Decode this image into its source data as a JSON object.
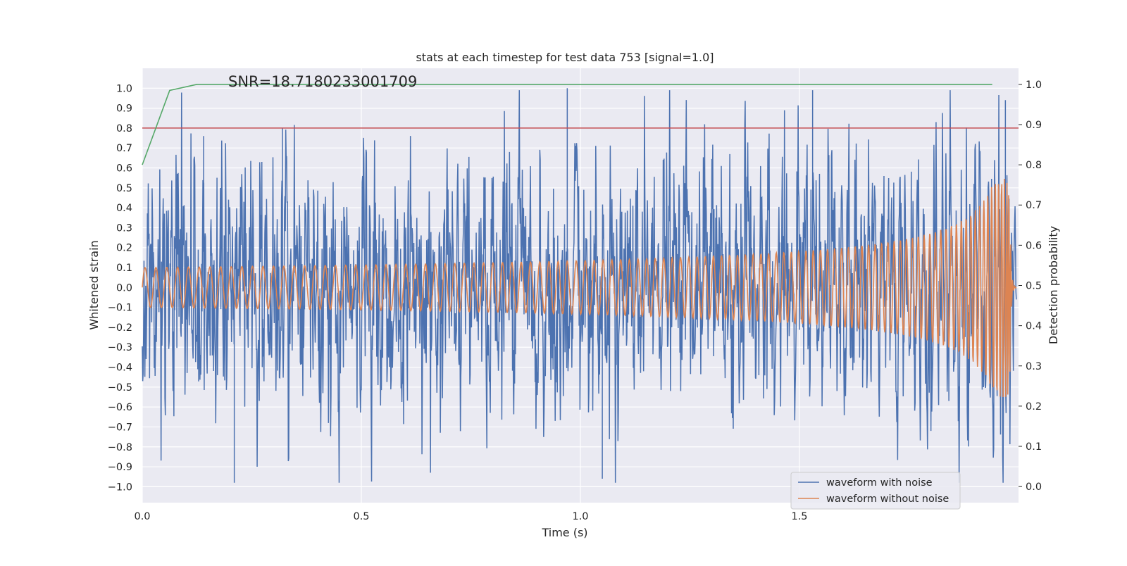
{
  "chart_data": {
    "type": "line",
    "title": "stats at each timestep for test data 753 [signal=1.0]",
    "annotation": "SNR=18.7180233001709",
    "xlabel": "Time (s)",
    "ylabel_left": "Whitened strain",
    "ylabel_right": "Detection probability",
    "xlim": [
      0.0,
      2.0
    ],
    "ylim_left": [
      -1.08,
      1.1
    ],
    "ylim_right": [
      -0.04,
      1.04
    ],
    "x_ticks": [
      "0.0",
      "0.5",
      "1.0",
      "1.5"
    ],
    "y_left_ticks": [
      "1.0",
      "0.9",
      "0.8",
      "0.7",
      "0.6",
      "0.5",
      "0.4",
      "0.3",
      "0.2",
      "0.1",
      "0.0",
      "−0.1",
      "−0.2",
      "−0.3",
      "−0.4",
      "−0.5",
      "−0.6",
      "−0.7",
      "−0.8",
      "−0.9",
      "−1.0"
    ],
    "y_left_tick_values": [
      1.0,
      0.9,
      0.8,
      0.7,
      0.6,
      0.5,
      0.4,
      0.3,
      0.2,
      0.1,
      0.0,
      -0.1,
      -0.2,
      -0.3,
      -0.4,
      -0.5,
      -0.6,
      -0.7,
      -0.8,
      -0.9,
      -1.0
    ],
    "y_right_ticks": [
      "1.0",
      "0.9",
      "0.8",
      "0.7",
      "0.6",
      "0.5",
      "0.4",
      "0.3",
      "0.2",
      "0.1",
      "0.0"
    ],
    "y_right_tick_values": [
      1.0,
      0.9,
      0.8,
      0.7,
      0.6,
      0.5,
      0.4,
      0.3,
      0.2,
      0.1,
      0.0
    ],
    "grid": true,
    "legend_position": "bottom-right",
    "series": [
      {
        "name": "waveform with noise",
        "color": "#4c72b0",
        "axis": "left",
        "description": "noisy whitened strain, fluctuates roughly between -0.98 and 1.0 over 0.0-2.0 s",
        "amplitude_std": 0.33,
        "peaks": [
          [
            0.14,
            0.76
          ],
          [
            0.21,
            -0.98
          ],
          [
            0.32,
            0.8
          ],
          [
            0.97,
            1.0
          ],
          [
            1.05,
            -0.96
          ],
          [
            1.53,
            0.99
          ],
          [
            1.97,
            0.94
          ]
        ]
      },
      {
        "name": "waveform without noise",
        "color": "#dd8452",
        "axis": "left",
        "description": "chirp signal, amplitude ~0.1 rising to ~0.55 near merger at ~1.98 s",
        "amplitude_start": 0.1,
        "amplitude_peak": 0.55,
        "merger_time": 1.98,
        "frequency_start_hz": 40
      },
      {
        "name": "detection probability",
        "color": "#55a868",
        "axis": "right",
        "x": [
          0.0,
          0.0625,
          0.125,
          0.1875,
          0.25,
          0.5,
          1.0,
          1.5,
          1.94
        ],
        "y": [
          0.8,
          0.985,
          1.0,
          1.0,
          1.0,
          1.0,
          1.0,
          1.0,
          1.0
        ]
      },
      {
        "name": "threshold",
        "color": "#c44e52",
        "axis": "left",
        "x": [
          0.0,
          2.0
        ],
        "y": [
          0.8,
          0.8
        ]
      }
    ]
  },
  "colors": {
    "plot_background": "#eaeaf2",
    "grid": "#ffffff",
    "text": "#262626",
    "noise": "#4c72b0",
    "signal": "#dd8452",
    "probability": "#55a868",
    "threshold": "#c44e52"
  },
  "legend": {
    "items": [
      {
        "label": "waveform with noise",
        "color": "#4c72b0"
      },
      {
        "label": "waveform without noise",
        "color": "#dd8452"
      }
    ]
  }
}
